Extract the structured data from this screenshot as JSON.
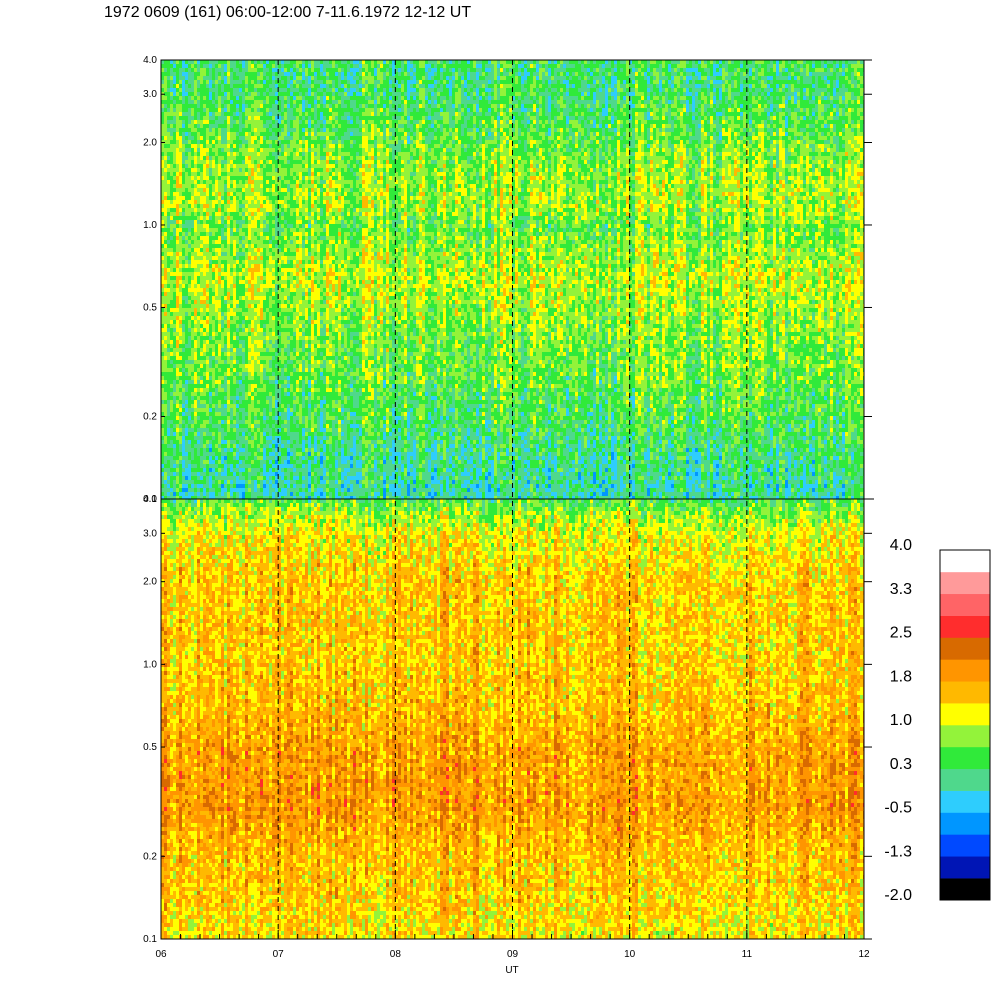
{
  "title": "1972 0609 (161) 06:00-12:00 7-11.6.1972  12-12 UT",
  "chart_data": {
    "type": "heatmap",
    "title": "1972 0609 (161) 06:00-12:00 7-11.6.1972  12-12 UT",
    "xlabel": "UT",
    "x_ticks": [
      "06",
      "07",
      "08",
      "09",
      "10",
      "11",
      "12"
    ],
    "xlim": [
      6,
      12
    ],
    "y_scale": "log",
    "ylim": [
      0.1,
      4.0
    ],
    "y_ticks": [
      0.1,
      0.2,
      0.5,
      1.0,
      2.0,
      3.0,
      4.0
    ],
    "y_tick_labels": [
      "0.1",
      "0.2",
      "0.5",
      "1.0",
      "2.0",
      "3.0",
      "4.0"
    ],
    "dashed_hour_markers": [
      7,
      8,
      9,
      10,
      11
    ],
    "panels": [
      {
        "name": "upper",
        "profile": [
          {
            "y": 0.1,
            "value": 0.0
          },
          {
            "y": 0.15,
            "value": 0.2
          },
          {
            "y": 0.2,
            "value": 0.4
          },
          {
            "y": 0.3,
            "value": 0.6
          },
          {
            "y": 0.4,
            "value": 0.7
          },
          {
            "y": 0.55,
            "value": 0.9
          },
          {
            "y": 0.65,
            "value": 1.0
          },
          {
            "y": 0.8,
            "value": 0.8
          },
          {
            "y": 1.0,
            "value": 0.6
          },
          {
            "y": 1.2,
            "value": 0.9
          },
          {
            "y": 1.6,
            "value": 0.8
          },
          {
            "y": 2.0,
            "value": 0.6
          },
          {
            "y": 3.0,
            "value": 0.3
          },
          {
            "y": 4.0,
            "value": 0.3
          }
        ]
      },
      {
        "name": "lower",
        "profile": [
          {
            "y": 0.1,
            "value": 1.3
          },
          {
            "y": 0.15,
            "value": 1.5
          },
          {
            "y": 0.2,
            "value": 1.6
          },
          {
            "y": 0.3,
            "value": 1.9
          },
          {
            "y": 0.5,
            "value": 1.8
          },
          {
            "y": 0.7,
            "value": 1.6
          },
          {
            "y": 1.0,
            "value": 1.5
          },
          {
            "y": 2.0,
            "value": 1.5
          },
          {
            "y": 3.0,
            "value": 1.2
          },
          {
            "y": 3.6,
            "value": 0.8
          },
          {
            "y": 4.0,
            "value": 0.4
          }
        ]
      }
    ],
    "colorbar": {
      "range": [
        -2.0,
        4.0
      ],
      "tick_labels": [
        "4.0",
        "3.3",
        "2.5",
        "1.8",
        "1.0",
        "0.3",
        "-0.5",
        "-1.3",
        "-2.0"
      ],
      "colors": [
        "#000000",
        "#0015b5",
        "#0049ff",
        "#0096ff",
        "#2ecdfd",
        "#4fd88c",
        "#30ea3a",
        "#93f33a",
        "#ffff00",
        "#ffb900",
        "#ff9500",
        "#d86a00",
        "#ff2d2d",
        "#ff6466",
        "#ff9a9a",
        "#ffffff"
      ]
    }
  }
}
